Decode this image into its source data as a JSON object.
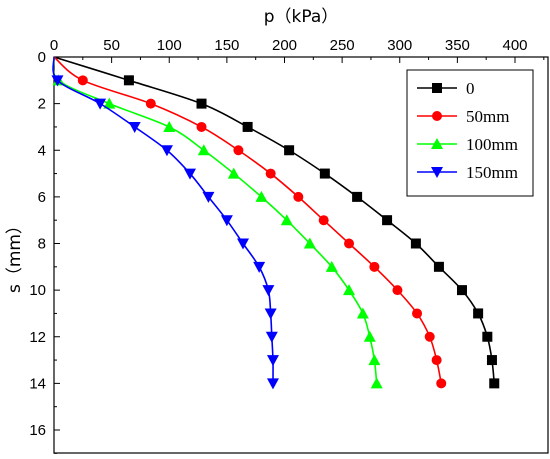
{
  "chart_data": {
    "type": "line",
    "xlabel": "p（kPa）",
    "ylabel": "s（mm）",
    "x_axis_position": "top",
    "y_axis_inverted": true,
    "xlim": [
      0,
      430
    ],
    "ylim": [
      0,
      17
    ],
    "x_ticks": [
      0,
      50,
      100,
      150,
      200,
      250,
      300,
      350,
      400
    ],
    "y_ticks": [
      0,
      2,
      4,
      6,
      8,
      10,
      12,
      14,
      16
    ],
    "grid": false,
    "legend_position": "top-right",
    "series": [
      {
        "name": "0",
        "color": "#000000",
        "marker": "square",
        "points": [
          [
            0,
            0
          ],
          [
            65,
            1
          ],
          [
            128,
            2
          ],
          [
            168,
            3
          ],
          [
            204,
            4
          ],
          [
            235,
            5
          ],
          [
            263,
            6
          ],
          [
            289,
            7
          ],
          [
            314,
            8
          ],
          [
            334,
            9
          ],
          [
            354,
            10
          ],
          [
            368,
            11
          ],
          [
            376,
            12
          ],
          [
            380,
            13
          ],
          [
            382,
            14
          ]
        ]
      },
      {
        "name": "50mm",
        "color": "#ff0000",
        "marker": "circle",
        "points": [
          [
            0,
            0
          ],
          [
            25,
            1
          ],
          [
            84,
            2
          ],
          [
            128,
            3
          ],
          [
            160,
            4
          ],
          [
            188,
            5
          ],
          [
            212,
            6
          ],
          [
            234,
            7
          ],
          [
            256,
            8
          ],
          [
            278,
            9
          ],
          [
            298,
            10
          ],
          [
            315,
            11
          ],
          [
            326,
            12
          ],
          [
            332,
            13
          ],
          [
            336,
            14
          ]
        ]
      },
      {
        "name": "100mm",
        "color": "#00ff00",
        "marker": "triangle-up",
        "points": [
          [
            0,
            0
          ],
          [
            4,
            1
          ],
          [
            48,
            2
          ],
          [
            100,
            3
          ],
          [
            130,
            4
          ],
          [
            156,
            5
          ],
          [
            180,
            6
          ],
          [
            202,
            7
          ],
          [
            222,
            8
          ],
          [
            241,
            9
          ],
          [
            256,
            10
          ],
          [
            268,
            11
          ],
          [
            274,
            12
          ],
          [
            278,
            13
          ],
          [
            280,
            14
          ]
        ]
      },
      {
        "name": "150mm",
        "color": "#0000ff",
        "marker": "triangle-down",
        "points": [
          [
            0,
            0
          ],
          [
            3,
            1
          ],
          [
            40,
            2
          ],
          [
            70,
            3
          ],
          [
            98,
            4
          ],
          [
            118,
            5
          ],
          [
            134,
            6
          ],
          [
            150,
            7
          ],
          [
            164,
            8
          ],
          [
            178,
            9
          ],
          [
            186,
            10
          ],
          [
            188,
            11
          ],
          [
            189,
            12
          ],
          [
            190,
            13
          ],
          [
            190,
            14
          ]
        ]
      }
    ]
  }
}
